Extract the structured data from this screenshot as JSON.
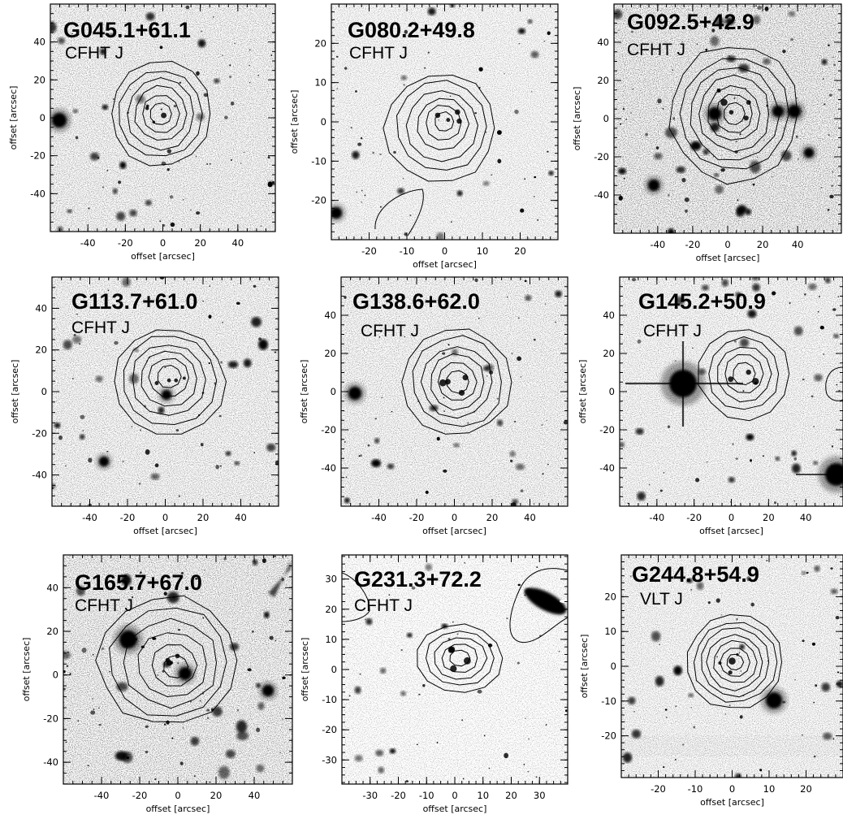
{
  "figure": {
    "axis_label": "offset [arcsec]",
    "panels": [
      {
        "name": "G045.1+61.1",
        "instrument": "CFHT J",
        "x_ticks": [
          -40,
          -20,
          0,
          20,
          40
        ],
        "y_ticks": [
          40,
          20,
          0,
          -20,
          -40
        ],
        "range": [
          -60,
          60
        ],
        "y_range": [
          -60,
          60
        ]
      },
      {
        "name": "G080.2+49.8",
        "instrument": "CFHT J",
        "x_ticks": [
          -20,
          -10,
          0,
          10,
          20
        ],
        "y_ticks": [
          20,
          10,
          0,
          -10,
          -20
        ],
        "range": [
          -30,
          30
        ],
        "y_range": [
          -30,
          30
        ]
      },
      {
        "name": "G092.5+42.9",
        "instrument": "CFHT J",
        "x_ticks": [
          -40,
          -20,
          0,
          20,
          40
        ],
        "y_ticks": [
          40,
          20,
          0,
          -20,
          -40
        ],
        "range": [
          -65,
          65
        ],
        "y_range": [
          -60,
          60
        ]
      },
      {
        "name": "G113.7+61.0",
        "instrument": "CFHT J",
        "x_ticks": [
          -40,
          -20,
          0,
          20,
          40
        ],
        "y_ticks": [
          40,
          20,
          0,
          -20,
          -40
        ],
        "range": [
          -60,
          60
        ],
        "y_range": [
          -55,
          55
        ]
      },
      {
        "name": "G138.6+62.0",
        "instrument": "CFHT J",
        "x_ticks": [
          -40,
          -20,
          0,
          20,
          40
        ],
        "y_ticks": [
          40,
          20,
          0,
          -20,
          -40
        ],
        "range": [
          -60,
          60
        ],
        "y_range": [
          -60,
          60
        ]
      },
      {
        "name": "G145.2+50.9",
        "instrument": "CFHT J",
        "x_ticks": [
          -40,
          -20,
          0,
          20,
          40
        ],
        "y_ticks": [
          40,
          20,
          0,
          -20,
          -40
        ],
        "range": [
          -60,
          60
        ],
        "y_range": [
          -60,
          60
        ]
      },
      {
        "name": "G165.7+67.0",
        "instrument": "CFHT J",
        "x_ticks": [
          -40,
          -20,
          0,
          20,
          40
        ],
        "y_ticks": [
          40,
          20,
          0,
          -20,
          -40
        ],
        "range": [
          -60,
          60
        ],
        "y_range": [
          -50,
          55
        ]
      },
      {
        "name": "G231.3+72.2",
        "instrument": "CFHT J",
        "x_ticks": [
          -30,
          -20,
          -10,
          0,
          10,
          20,
          30
        ],
        "y_ticks": [
          30,
          20,
          10,
          0,
          -10,
          -20,
          -30
        ],
        "range": [
          -40,
          40
        ],
        "y_range": [
          -38,
          38
        ]
      },
      {
        "name": "G244.8+54.9",
        "instrument": "VLT J",
        "x_ticks": [
          -20,
          -10,
          0,
          10,
          20
        ],
        "y_ticks": [
          20,
          10,
          0,
          -10,
          -20
        ],
        "range": [
          -30,
          30
        ],
        "y_range": [
          -32,
          32
        ]
      }
    ]
  }
}
